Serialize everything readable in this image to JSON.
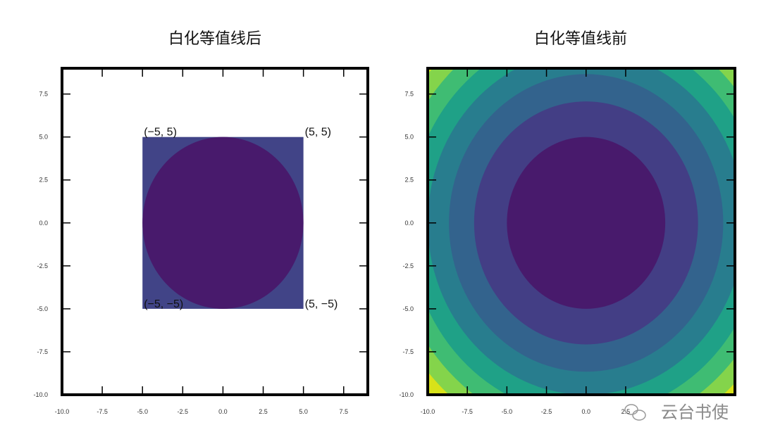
{
  "chart_data": [
    {
      "type": "contour",
      "title": "白化等值线后",
      "xlim": [
        -10,
        9
      ],
      "ylim": [
        -10,
        9
      ],
      "xticks": [
        "-10.0",
        "-7.5",
        "-5.0",
        "-2.5",
        "0.0",
        "2.5",
        "5.0",
        "7.5"
      ],
      "yticks": [
        "-10.0",
        "-7.5",
        "-5.0",
        "-2.5",
        "0.0",
        "2.5",
        "5.0",
        "7.5"
      ],
      "square": {
        "x": [
          -5,
          5
        ],
        "y": [
          -5,
          5
        ],
        "color": "#414487"
      },
      "circle": {
        "center": [
          0,
          0
        ],
        "radius": 5,
        "color": "#481a6c"
      },
      "annotations": [
        {
          "text": "(−5,  5)",
          "x": -5,
          "y": 5,
          "align": "left"
        },
        {
          "text": "(5,  5)",
          "x": 5,
          "y": 5,
          "align": "left"
        },
        {
          "text": "(−5,  −5)",
          "x": -5,
          "y": -5,
          "align": "left"
        },
        {
          "text": "(5,  −5)",
          "x": 5,
          "y": -5,
          "align": "left"
        }
      ]
    },
    {
      "type": "contour",
      "title": "白化等值线前",
      "xlim": [
        -10,
        9.4
      ],
      "ylim": [
        -10,
        9
      ],
      "xticks": [
        "-10.0",
        "-7.5",
        "-5.0",
        "-2.5",
        "0.0",
        "2.5"
      ],
      "yticks": [
        "-10.0",
        "-7.5",
        "-5.0",
        "-2.5",
        "0.0",
        "2.5",
        "5.0",
        "7.5"
      ],
      "function": "x^2 + y^2",
      "levels": [
        0,
        25,
        50,
        75,
        100,
        125,
        150,
        175,
        200
      ],
      "colors": [
        "#481a6c",
        "#433e85",
        "#33638d",
        "#287d8e",
        "#1fa187",
        "#3fbc73",
        "#84d44b",
        "#d8e219"
      ]
    }
  ],
  "watermark": "云台书使"
}
